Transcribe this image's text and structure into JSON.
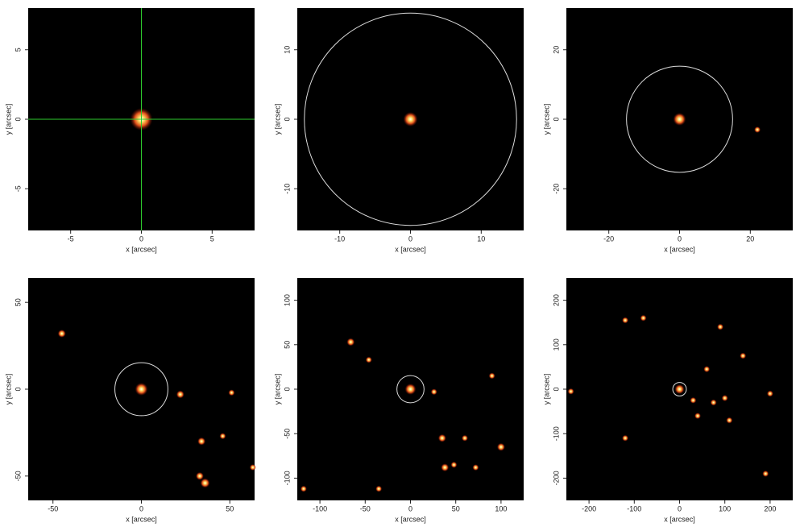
{
  "chart_data": [
    {
      "type": "image",
      "xlabel": "x [arcsec]",
      "ylabel": "y [arcsec]",
      "xlim": [
        -8,
        8
      ],
      "ylim": [
        -8,
        8
      ],
      "xticks": [
        -5,
        0,
        5
      ],
      "yticks": [
        -5,
        0,
        5
      ],
      "crosshair": true,
      "crosshair_color": "#2ecc2e",
      "color": "#ffe066",
      "sources": {
        "x": [
          0
        ],
        "y": [
          0
        ],
        "size": [
          1.4
        ]
      }
    },
    {
      "type": "image",
      "xlabel": "x [arcsec]",
      "ylabel": "y [arcsec]",
      "xlim": [
        -16,
        16
      ],
      "ylim": [
        -16,
        16
      ],
      "xticks": [
        -10,
        0,
        10
      ],
      "yticks": [
        -10,
        0,
        10
      ],
      "circle_radius": 15,
      "color": "#ffe066",
      "sources": {
        "x": [
          0
        ],
        "y": [
          0
        ],
        "size": [
          0.9
        ]
      }
    },
    {
      "type": "image",
      "xlabel": "x [arcsec]",
      "ylabel": "y [arcsec]",
      "xlim": [
        -32,
        32
      ],
      "ylim": [
        -32,
        32
      ],
      "xticks": [
        -20,
        0,
        20
      ],
      "yticks": [
        -20,
        0,
        20
      ],
      "circle_radius": 15,
      "color": "#ffe066",
      "sources": {
        "x": [
          0,
          22
        ],
        "y": [
          0,
          -3
        ],
        "size": [
          0.8,
          0.4
        ]
      }
    },
    {
      "type": "image",
      "xlabel": "x [arcsec]",
      "ylabel": "y [arcsec]",
      "xlim": [
        -64,
        64
      ],
      "ylim": [
        -64,
        64
      ],
      "xticks": [
        -50,
        0,
        50
      ],
      "yticks": [
        -50,
        0,
        50
      ],
      "circle_radius": 15,
      "color": "#ffe066",
      "sources": {
        "x": [
          0,
          -45,
          22,
          34,
          46,
          33,
          36,
          51,
          63
        ],
        "y": [
          0,
          32,
          -3,
          -30,
          -27,
          -50,
          -54,
          -2,
          -45
        ],
        "size": [
          0.8,
          0.5,
          0.5,
          0.5,
          0.4,
          0.5,
          0.6,
          0.4,
          0.4
        ]
      }
    },
    {
      "type": "image",
      "xlabel": "x [arcsec]",
      "ylabel": "y [arcsec]",
      "xlim": [
        -125,
        125
      ],
      "ylim": [
        -125,
        125
      ],
      "xticks": [
        -100,
        -50,
        0,
        50,
        100
      ],
      "yticks": [
        -100,
        -50,
        0,
        50,
        100
      ],
      "circle_radius": 15,
      "color": "#ffe066",
      "sources": {
        "x": [
          0,
          -66,
          -46,
          90,
          35,
          100,
          38,
          48,
          72,
          -118,
          -35,
          26,
          60
        ],
        "y": [
          0,
          53,
          33,
          15,
          -55,
          -65,
          -88,
          -85,
          -88,
          -112,
          -112,
          -3,
          -55
        ],
        "size": [
          0.7,
          0.5,
          0.4,
          0.4,
          0.5,
          0.5,
          0.5,
          0.4,
          0.4,
          0.4,
          0.4,
          0.4,
          0.4
        ]
      }
    },
    {
      "type": "image",
      "xlabel": "x [arcsec]",
      "ylabel": "y [arcsec]",
      "xlim": [
        -250,
        250
      ],
      "ylim": [
        -250,
        250
      ],
      "xticks": [
        -200,
        -100,
        0,
        100,
        200
      ],
      "yticks": [
        -200,
        -100,
        0,
        100,
        200
      ],
      "circle_radius": 15,
      "color": "#ffe066",
      "sources": {
        "x": [
          0,
          -120,
          -80,
          90,
          140,
          60,
          75,
          40,
          100,
          190,
          -120,
          200,
          -240,
          30,
          110
        ],
        "y": [
          0,
          155,
          160,
          140,
          75,
          45,
          -30,
          -60,
          -20,
          -190,
          -110,
          -10,
          -5,
          -25,
          -70
        ],
        "size": [
          0.6,
          0.4,
          0.4,
          0.4,
          0.4,
          0.4,
          0.4,
          0.4,
          0.4,
          0.4,
          0.4,
          0.4,
          0.4,
          0.4,
          0.4
        ]
      }
    }
  ]
}
